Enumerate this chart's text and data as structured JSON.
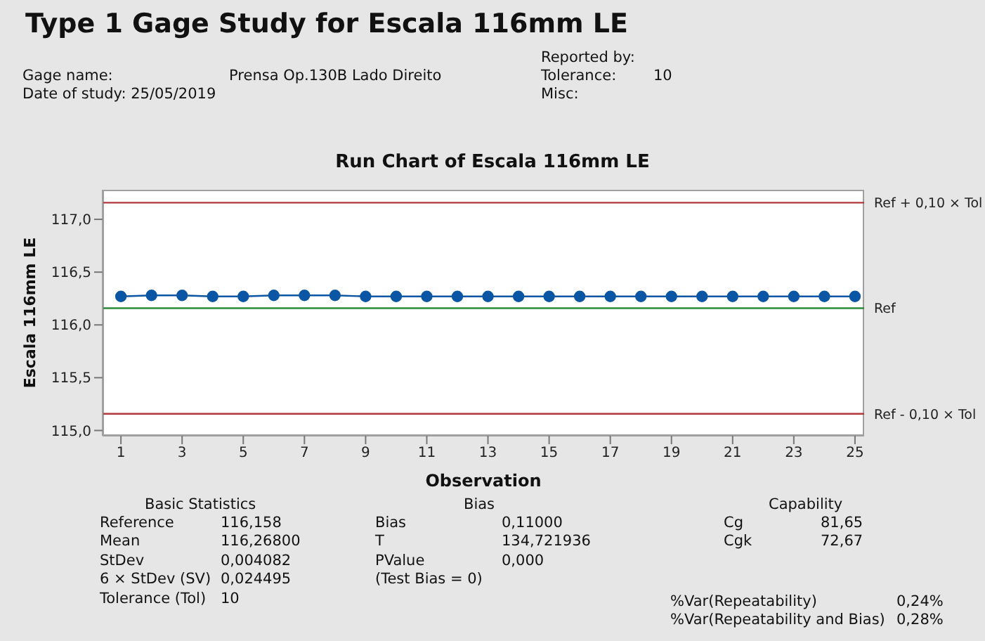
{
  "chart_data": {
    "type": "line",
    "title": "Type 1 Gage Study for Escala 116mm LE",
    "subtitle": "Run Chart of Escala 116mm LE",
    "xlabel": "Observation",
    "ylabel": "Escala 116mm LE",
    "x": [
      1,
      2,
      3,
      4,
      5,
      6,
      7,
      8,
      9,
      10,
      11,
      12,
      13,
      14,
      15,
      16,
      17,
      18,
      19,
      20,
      21,
      22,
      23,
      24,
      25
    ],
    "series": [
      {
        "color": "#0b56a4",
        "values": [
          116.27,
          116.28,
          116.28,
          116.27,
          116.27,
          116.28,
          116.28,
          116.28,
          116.27,
          116.27,
          116.27,
          116.27,
          116.27,
          116.27,
          116.27,
          116.27,
          116.27,
          116.27,
          116.27,
          116.27,
          116.27,
          116.27,
          116.27,
          116.27,
          116.27
        ]
      }
    ],
    "marker": "circle",
    "xlim": [
      0.4,
      25.3
    ],
    "xticks": [
      1,
      3,
      5,
      7,
      9,
      11,
      13,
      15,
      17,
      19,
      21,
      23,
      25
    ],
    "ylim": [
      114.95,
      117.28
    ],
    "yticks": [
      {
        "value": 115,
        "label": "115,0"
      },
      {
        "value": 115.5,
        "label": "115,5"
      },
      {
        "value": 116,
        "label": "116,0"
      },
      {
        "value": 116.5,
        "label": "116,5"
      },
      {
        "value": 117,
        "label": "117,0"
      }
    ],
    "ref_lines": [
      {
        "axis": "y",
        "value": 117.158,
        "label": "Ref + 0,10 × Tol",
        "color": "#b0393b"
      },
      {
        "axis": "y",
        "value": 116.158,
        "label": "Ref",
        "color": "#2a8a3a"
      },
      {
        "axis": "y",
        "value": 115.158,
        "label": "Ref - 0,10 × Tol",
        "color": "#b0393b"
      }
    ],
    "annotations": [
      "Gage name:",
      "Prensa Op.130B Lado Direito",
      "Date of study: 25/05/2019",
      "Reported by:",
      "Tolerance:",
      "10",
      "Misc:",
      "Basic Statistics",
      "Reference",
      "116,158",
      "Mean",
      "116,26800",
      "StDev",
      "0,004082",
      "6 × StDev (SV)",
      "0,024495",
      "Tolerance (Tol)",
      "10",
      "Bias",
      "Bias",
      "0,11000",
      "T",
      "134,721936",
      "PValue",
      "0,000",
      "(Test Bias = 0)",
      "Capability",
      "Cg",
      "81,65",
      "Cgk",
      "72,67",
      "%Var(Repeatability)",
      "0,24%",
      "%Var(Repeatability and Bias)",
      "0,28%"
    ]
  }
}
